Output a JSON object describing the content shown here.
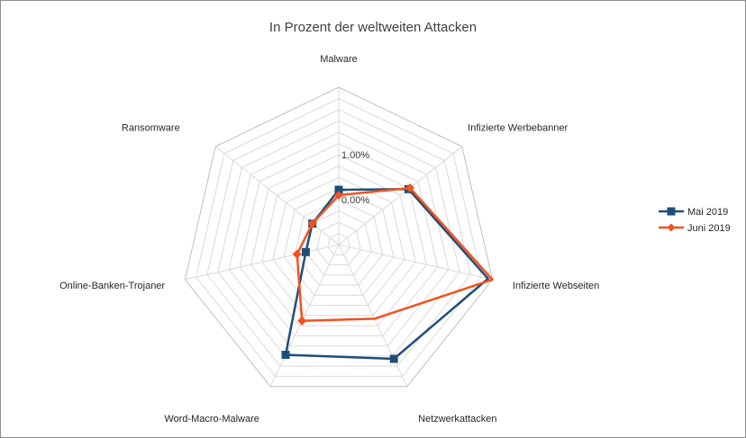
{
  "chart_data": {
    "type": "radar",
    "title": "In Prozent der weltweiten Attacken",
    "categories": [
      "Malware",
      "Infizierte Werbebanner",
      "Infizierte Webseiten",
      "Netzwerkattacken",
      "Word-Macro-Malware",
      "Online-Banken-Trojaner",
      "Ransomware"
    ],
    "axis": {
      "min": -0.01,
      "max": 0.025,
      "major_unit": 0.01,
      "minor_unit": 0.0025,
      "tick_labels": [
        "0.00%",
        "1.00%"
      ],
      "tick_values": [
        0.0,
        0.01
      ]
    },
    "series": [
      {
        "name": "Mai 2019",
        "color": "#1f4e79",
        "marker": "square",
        "values": [
          0.0022,
          0.0098,
          0.024,
          0.0182,
          0.0172,
          -0.0025,
          -0.0025
        ],
        "markers_on": [
          true,
          true,
          false,
          true,
          true,
          true,
          true
        ]
      },
      {
        "name": "Juni 2019",
        "color": "#f4511e",
        "marker": "diamond",
        "values": [
          0.001,
          0.0102,
          0.025,
          0.0083,
          0.0088,
          -0.0005,
          -0.0025
        ],
        "markers_on": [
          true,
          true,
          false,
          false,
          true,
          true,
          true
        ]
      }
    ],
    "legend": "right",
    "grid": true
  }
}
